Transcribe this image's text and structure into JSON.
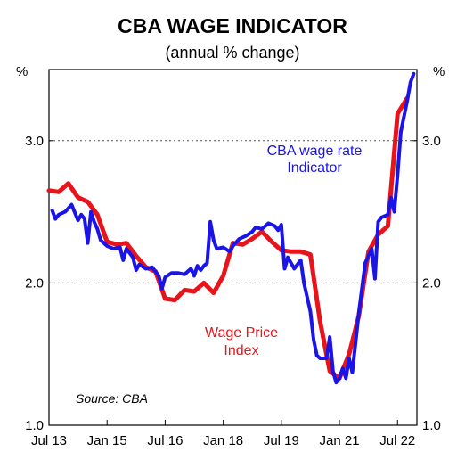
{
  "chart_data": {
    "type": "line",
    "title": "CBA WAGE INDICATOR",
    "subtitle": "(annual % change)",
    "y_unit_left": "%",
    "y_unit_right": "%",
    "ylim": [
      1.0,
      3.5
    ],
    "yticks": [
      1.0,
      2.0,
      3.0
    ],
    "ytick_labels": [
      "1.0",
      "2.0",
      "3.0"
    ],
    "x_range": [
      "2013-07",
      "2023-01"
    ],
    "xticks": [
      "2013-07",
      "2015-01",
      "2016-07",
      "2018-01",
      "2019-07",
      "2021-01",
      "2022-07"
    ],
    "xtick_labels": [
      "Jul 13",
      "Jan 15",
      "Jul 16",
      "Jan 18",
      "Jul 19",
      "Jan 21",
      "Jul 22"
    ],
    "grid": "horizontal dotted at 2.0 and 3.0",
    "source": "Source: CBA",
    "series": [
      {
        "name": "Wage Price Index",
        "label_lines": [
          "Wage Price",
          "Index"
        ],
        "color": "#e8141b",
        "points": [
          [
            "2013-07",
            2.65
          ],
          [
            "2013-10",
            2.64
          ],
          [
            "2014-01",
            2.7
          ],
          [
            "2014-04",
            2.6
          ],
          [
            "2014-07",
            2.57
          ],
          [
            "2014-10",
            2.48
          ],
          [
            "2015-01",
            2.29
          ],
          [
            "2015-04",
            2.27
          ],
          [
            "2015-07",
            2.28
          ],
          [
            "2015-10",
            2.19
          ],
          [
            "2016-01",
            2.11
          ],
          [
            "2016-04",
            2.08
          ],
          [
            "2016-07",
            1.89
          ],
          [
            "2016-10",
            1.88
          ],
          [
            "2017-01",
            1.95
          ],
          [
            "2017-04",
            1.94
          ],
          [
            "2017-07",
            2.0
          ],
          [
            "2017-10",
            1.93
          ],
          [
            "2018-01",
            2.05
          ],
          [
            "2018-04",
            2.28
          ],
          [
            "2018-07",
            2.27
          ],
          [
            "2018-10",
            2.31
          ],
          [
            "2019-01",
            2.36
          ],
          [
            "2019-04",
            2.29
          ],
          [
            "2019-07",
            2.23
          ],
          [
            "2019-10",
            2.22
          ],
          [
            "2020-01",
            2.22
          ],
          [
            "2020-04",
            2.2
          ],
          [
            "2020-07",
            1.73
          ],
          [
            "2020-10",
            1.38
          ],
          [
            "2021-01",
            1.33
          ],
          [
            "2021-04",
            1.5
          ],
          [
            "2021-07",
            1.77
          ],
          [
            "2021-10",
            2.22
          ],
          [
            "2022-01",
            2.34
          ],
          [
            "2022-04",
            2.4
          ],
          [
            "2022-07",
            3.19
          ],
          [
            "2022-10",
            3.3
          ]
        ]
      },
      {
        "name": "CBA wage rate Indicator",
        "label_lines": [
          "CBA wage rate",
          "Indicator"
        ],
        "color": "#1a14e6",
        "points": [
          [
            "2013-08",
            2.51
          ],
          [
            "2013-09",
            2.45
          ],
          [
            "2013-10",
            2.48
          ],
          [
            "2013-12",
            2.5
          ],
          [
            "2014-02",
            2.55
          ],
          [
            "2014-04",
            2.44
          ],
          [
            "2014-05",
            2.48
          ],
          [
            "2014-06",
            2.45
          ],
          [
            "2014-07",
            2.28
          ],
          [
            "2014-08",
            2.5
          ],
          [
            "2014-09",
            2.43
          ],
          [
            "2014-10",
            2.38
          ],
          [
            "2014-11",
            2.3
          ],
          [
            "2015-01",
            2.26
          ],
          [
            "2015-03",
            2.24
          ],
          [
            "2015-05",
            2.25
          ],
          [
            "2015-06",
            2.16
          ],
          [
            "2015-07",
            2.24
          ],
          [
            "2015-09",
            2.18
          ],
          [
            "2015-10",
            2.09
          ],
          [
            "2015-11",
            2.13
          ],
          [
            "2016-01",
            2.1
          ],
          [
            "2016-03",
            2.11
          ],
          [
            "2016-05",
            2.05
          ],
          [
            "2016-06",
            1.96
          ],
          [
            "2016-07",
            2.04
          ],
          [
            "2016-09",
            2.07
          ],
          [
            "2016-11",
            2.07
          ],
          [
            "2017-01",
            2.06
          ],
          [
            "2017-03",
            2.1
          ],
          [
            "2017-04",
            2.05
          ],
          [
            "2017-05",
            2.12
          ],
          [
            "2017-06",
            2.09
          ],
          [
            "2017-07",
            2.12
          ],
          [
            "2017-08",
            2.14
          ],
          [
            "2017-09",
            2.43
          ],
          [
            "2017-10",
            2.3
          ],
          [
            "2017-11",
            2.24
          ],
          [
            "2018-01",
            2.25
          ],
          [
            "2018-03",
            2.22
          ],
          [
            "2018-04",
            2.26
          ],
          [
            "2018-06",
            2.31
          ],
          [
            "2018-08",
            2.33
          ],
          [
            "2018-10",
            2.36
          ],
          [
            "2018-11",
            2.39
          ],
          [
            "2019-01",
            2.38
          ],
          [
            "2019-03",
            2.42
          ],
          [
            "2019-05",
            2.4
          ],
          [
            "2019-06",
            2.37
          ],
          [
            "2019-07",
            2.41
          ],
          [
            "2019-08",
            2.1
          ],
          [
            "2019-09",
            2.18
          ],
          [
            "2019-11",
            2.1
          ],
          [
            "2020-01",
            2.16
          ],
          [
            "2020-02",
            2.0
          ],
          [
            "2020-04",
            1.8
          ],
          [
            "2020-05",
            1.6
          ],
          [
            "2020-06",
            1.49
          ],
          [
            "2020-07",
            1.47
          ],
          [
            "2020-09",
            1.47
          ],
          [
            "2020-10",
            1.62
          ],
          [
            "2020-11",
            1.38
          ],
          [
            "2020-12",
            1.3
          ],
          [
            "2021-01",
            1.33
          ],
          [
            "2021-02",
            1.4
          ],
          [
            "2021-03",
            1.33
          ],
          [
            "2021-04",
            1.47
          ],
          [
            "2021-05",
            1.37
          ],
          [
            "2021-07",
            1.79
          ],
          [
            "2021-09",
            2.14
          ],
          [
            "2021-11",
            2.24
          ],
          [
            "2021-12",
            2.03
          ],
          [
            "2022-01",
            2.43
          ],
          [
            "2022-02",
            2.46
          ],
          [
            "2022-04",
            2.48
          ],
          [
            "2022-05",
            2.6
          ],
          [
            "2022-06",
            2.5
          ],
          [
            "2022-07",
            2.76
          ],
          [
            "2022-08",
            3.06
          ],
          [
            "2022-10",
            3.28
          ],
          [
            "2022-11",
            3.41
          ],
          [
            "2022-12",
            3.47
          ]
        ]
      }
    ]
  }
}
